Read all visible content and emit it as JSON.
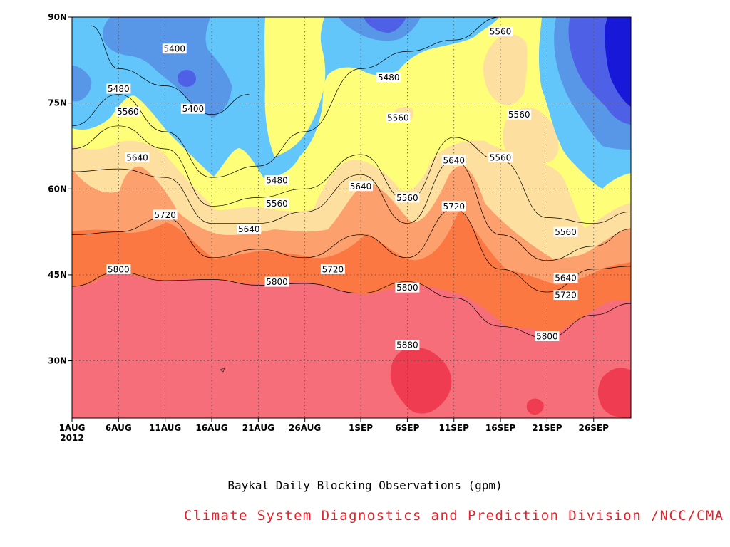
{
  "chart_data": {
    "type": "heatmap",
    "subtype": "filled-contour",
    "x_axis": {
      "kind": "date",
      "start": "2012-08-01",
      "end": "2012-09-30",
      "ticks": [
        {
          "date": "2012-08-01",
          "label": "1AUG",
          "sublabel": "2012"
        },
        {
          "date": "2012-08-06",
          "label": "6AUG"
        },
        {
          "date": "2012-08-11",
          "label": "11AUG"
        },
        {
          "date": "2012-08-16",
          "label": "16AUG"
        },
        {
          "date": "2012-08-21",
          "label": "21AUG"
        },
        {
          "date": "2012-08-26",
          "label": "26AUG"
        },
        {
          "date": "2012-09-01",
          "label": "1SEP"
        },
        {
          "date": "2012-09-06",
          "label": "6SEP"
        },
        {
          "date": "2012-09-11",
          "label": "11SEP"
        },
        {
          "date": "2012-09-16",
          "label": "16SEP"
        },
        {
          "date": "2012-09-21",
          "label": "21SEP"
        },
        {
          "date": "2012-09-26",
          "label": "26SEP"
        }
      ]
    },
    "y_axis": {
      "kind": "latitude",
      "range": [
        20,
        90
      ],
      "ticks": [
        {
          "value": 30,
          "label": "30N"
        },
        {
          "value": 45,
          "label": "45N"
        },
        {
          "value": 60,
          "label": "60N"
        },
        {
          "value": 75,
          "label": "75N"
        },
        {
          "value": 90,
          "label": "90N"
        }
      ]
    },
    "grid": "dotted",
    "levels": [
      {
        "range": ">5880",
        "color": "#f03c50"
      },
      {
        "range": "5800-5880",
        "color": "#f66e7a"
      },
      {
        "range": "5720-5800",
        "color": "#fb7842"
      },
      {
        "range": "5640-5720",
        "color": "#fca06e"
      },
      {
        "range": "5560-5640",
        "color": "#fde0a0"
      },
      {
        "range": "5480-5560",
        "color": "#fefe78"
      },
      {
        "range": "5400-5480",
        "color": "#62c6fb"
      },
      {
        "range": "5320-5400",
        "color": "#5896e8"
      },
      {
        "range": "5240-5320",
        "color": "#4d60e6"
      },
      {
        "range": "<5240",
        "color": "#1818d8"
      }
    ],
    "contour_lines": [
      {
        "value": 5800,
        "points": [
          [
            "2012-08-01",
            43.0
          ],
          [
            "2012-08-06",
            45.5
          ],
          [
            "2012-08-11",
            44.0
          ],
          [
            "2012-08-16",
            44.2
          ],
          [
            "2012-08-21",
            43.2
          ],
          [
            "2012-08-26",
            43.5
          ],
          [
            "2012-09-01",
            41.8
          ],
          [
            "2012-09-06",
            43.8
          ],
          [
            "2012-09-11",
            41.0
          ],
          [
            "2012-09-16",
            36.0
          ],
          [
            "2012-09-21",
            34.0
          ],
          [
            "2012-09-26",
            38.0
          ],
          [
            "2012-09-30",
            40.0
          ]
        ]
      },
      {
        "value": 5720,
        "points": [
          [
            "2012-08-01",
            52.0
          ],
          [
            "2012-08-06",
            52.5
          ],
          [
            "2012-08-11",
            55.0
          ],
          [
            "2012-08-16",
            48.0
          ],
          [
            "2012-08-21",
            49.5
          ],
          [
            "2012-08-26",
            48.0
          ],
          [
            "2012-09-01",
            52.0
          ],
          [
            "2012-09-06",
            48.0
          ],
          [
            "2012-09-11",
            56.5
          ],
          [
            "2012-09-16",
            46.0
          ],
          [
            "2012-09-21",
            42.0
          ],
          [
            "2012-09-26",
            46.0
          ],
          [
            "2012-09-30",
            46.5
          ]
        ]
      },
      {
        "value": 5640,
        "points": [
          [
            "2012-08-01",
            63.0
          ],
          [
            "2012-08-06",
            63.5
          ],
          [
            "2012-08-11",
            62.0
          ],
          [
            "2012-08-16",
            54.0
          ],
          [
            "2012-08-21",
            54.0
          ],
          [
            "2012-08-26",
            56.0
          ],
          [
            "2012-09-01",
            62.5
          ],
          [
            "2012-09-06",
            54.0
          ],
          [
            "2012-09-11",
            65.0
          ],
          [
            "2012-09-16",
            52.0
          ],
          [
            "2012-09-21",
            47.5
          ],
          [
            "2012-09-26",
            50.0
          ],
          [
            "2012-09-30",
            53.0
          ]
        ]
      },
      {
        "value": 5560,
        "points": [
          [
            "2012-08-01",
            67.0
          ],
          [
            "2012-08-06",
            71.0
          ],
          [
            "2012-08-11",
            67.0
          ],
          [
            "2012-08-16",
            57.0
          ],
          [
            "2012-08-21",
            58.5
          ],
          [
            "2012-08-26",
            60.0
          ],
          [
            "2012-09-01",
            66.0
          ],
          [
            "2012-09-06",
            58.0
          ],
          [
            "2012-09-11",
            69.0
          ],
          [
            "2012-09-16",
            65.0
          ],
          [
            "2012-09-21",
            55.0
          ],
          [
            "2012-09-26",
            54.0
          ],
          [
            "2012-09-30",
            56.0
          ]
        ]
      },
      {
        "value": 5480,
        "points": [
          [
            "2012-08-01",
            71.0
          ],
          [
            "2012-08-06",
            76.5
          ],
          [
            "2012-08-11",
            70.0
          ],
          [
            "2012-08-16",
            62.0
          ],
          [
            "2012-08-21",
            64.0
          ],
          [
            "2012-08-26",
            70.0
          ],
          [
            "2012-09-01",
            81.0
          ],
          [
            "2012-09-06",
            84.0
          ],
          [
            "2012-09-11",
            86.0
          ],
          [
            "2012-09-16",
            90.0
          ]
        ]
      },
      {
        "value": 5400,
        "points": [
          [
            "2012-08-03",
            88.5
          ],
          [
            "2012-08-06",
            81.0
          ],
          [
            "2012-08-11",
            78.0
          ],
          [
            "2012-08-16",
            73.0
          ],
          [
            "2012-08-20",
            76.5
          ]
        ]
      }
    ],
    "contour_labels": [
      {
        "text": "5400",
        "x": "2012-08-12",
        "y": 84.5
      },
      {
        "text": "5400",
        "x": "2012-08-14",
        "y": 74.0
      },
      {
        "text": "5480",
        "x": "2012-08-06",
        "y": 77.5
      },
      {
        "text": "5480",
        "x": "2012-08-23",
        "y": 61.5
      },
      {
        "text": "5480",
        "x": "2012-09-04",
        "y": 79.5
      },
      {
        "text": "5560",
        "x": "2012-08-07",
        "y": 73.5
      },
      {
        "text": "5560",
        "x": "2012-08-23",
        "y": 57.5
      },
      {
        "text": "5560",
        "x": "2012-09-05",
        "y": 72.5
      },
      {
        "text": "5560",
        "x": "2012-09-06",
        "y": 58.5
      },
      {
        "text": "5560",
        "x": "2012-09-16",
        "y": 87.5
      },
      {
        "text": "5560",
        "x": "2012-09-18",
        "y": 73.0
      },
      {
        "text": "5560",
        "x": "2012-09-16",
        "y": 65.5
      },
      {
        "text": "5560",
        "x": "2012-09-23",
        "y": 52.5
      },
      {
        "text": "5640",
        "x": "2012-08-08",
        "y": 65.5
      },
      {
        "text": "5640",
        "x": "2012-08-20",
        "y": 53.0
      },
      {
        "text": "5640",
        "x": "2012-09-01",
        "y": 60.5
      },
      {
        "text": "5640",
        "x": "2012-09-11",
        "y": 65.0
      },
      {
        "text": "5640",
        "x": "2012-09-23",
        "y": 44.5
      },
      {
        "text": "5720",
        "x": "2012-08-11",
        "y": 55.5
      },
      {
        "text": "5720",
        "x": "2012-08-29",
        "y": 46.0
      },
      {
        "text": "5720",
        "x": "2012-09-11",
        "y": 57.0
      },
      {
        "text": "5720",
        "x": "2012-09-23",
        "y": 41.5
      },
      {
        "text": "5800",
        "x": "2012-08-06",
        "y": 46.0
      },
      {
        "text": "5800",
        "x": "2012-08-23",
        "y": 43.8
      },
      {
        "text": "5800",
        "x": "2012-09-06",
        "y": 42.8
      },
      {
        "text": "5800",
        "x": "2012-09-21",
        "y": 34.3
      },
      {
        "text": "5880",
        "x": "2012-09-06",
        "y": 32.8
      }
    ]
  },
  "caption": "Baykal Daily Blocking Observations (gpm)",
  "credit": "Climate System Diagnostics and Prediction Division /NCC/CMA"
}
